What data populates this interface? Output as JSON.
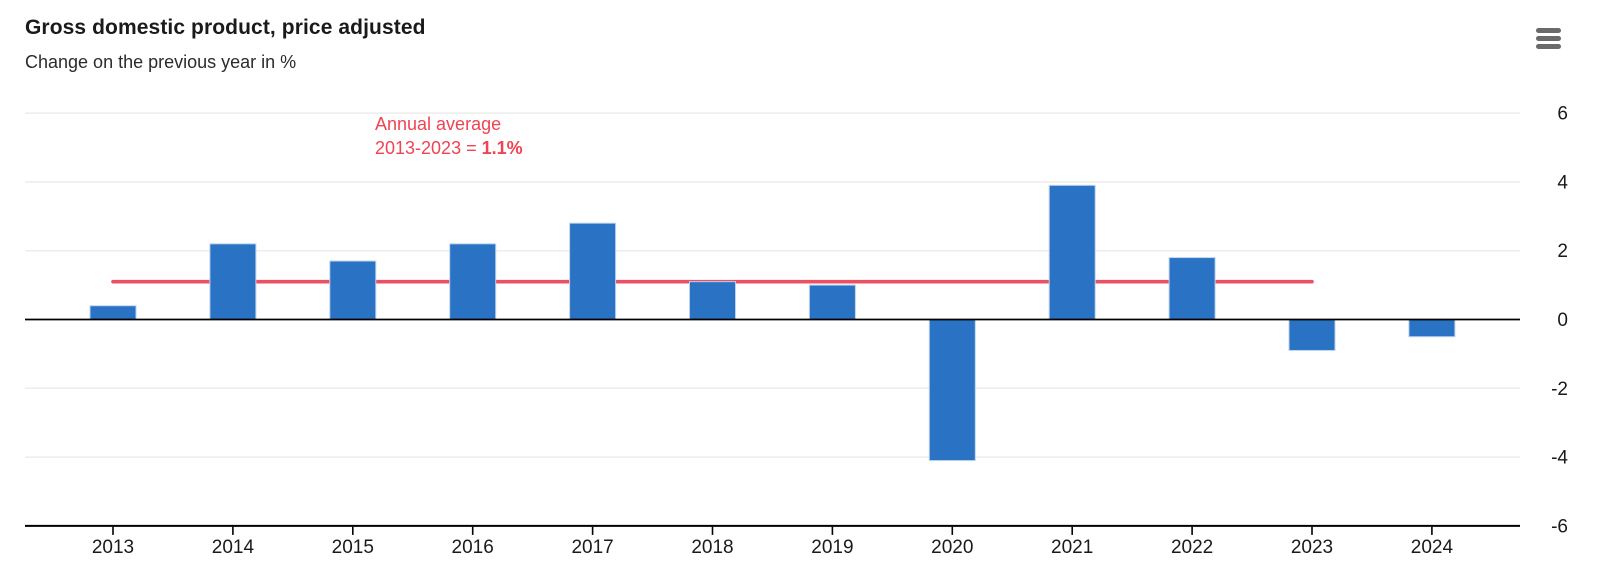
{
  "header": {
    "title": "Gross domestic product, price adjusted",
    "subtitle": "Change on the previous year in %"
  },
  "menu": {
    "icon": "hamburger-menu-icon"
  },
  "annotation": {
    "line1": "Annual average",
    "line2_prefix": "2013-2023 = ",
    "value": "1.1%"
  },
  "chart_data": {
    "type": "bar",
    "title": "Gross domestic product, price adjusted",
    "subtitle": "Change on the previous year in %",
    "categories": [
      "2013",
      "2014",
      "2015",
      "2016",
      "2017",
      "2018",
      "2019",
      "2020",
      "2021",
      "2022",
      "2023",
      "2024"
    ],
    "values": [
      0.4,
      2.2,
      1.7,
      2.2,
      2.8,
      1.1,
      1.0,
      -4.1,
      3.9,
      1.8,
      -0.9,
      -0.5
    ],
    "unit": "%",
    "average_line": {
      "value": 1.1,
      "from_category": "2013",
      "to_category": "2023",
      "label": "Annual average 2013-2023 = 1.1%"
    },
    "ylim": [
      -6,
      6
    ],
    "yticks": [
      6,
      4,
      2,
      0,
      -2,
      -4,
      -6
    ],
    "y_axis_side": "right",
    "grid": true,
    "legend": false,
    "colors": {
      "bar": "#2a72c4",
      "bar_border": "#bdd3ec",
      "average_line": "#ec5063",
      "annotation_text": "#f04353",
      "grid": "#ececec",
      "axis": "#000000",
      "text": "#1a1a1a"
    }
  }
}
